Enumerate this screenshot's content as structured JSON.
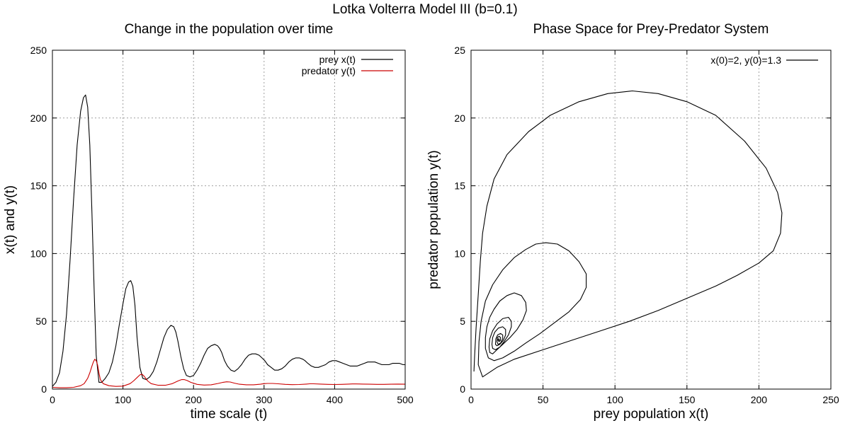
{
  "figure": {
    "title": "Lotka Volterra Model III (b=0.1)"
  },
  "chart_data": [
    {
      "type": "line",
      "title": "Change in the population over time",
      "xlabel": "time scale (t)",
      "ylabel": "x(t) and y(t)",
      "xlim": [
        0,
        500
      ],
      "ylim": [
        0,
        250
      ],
      "xticks": [
        0,
        100,
        200,
        300,
        400,
        500
      ],
      "yticks": [
        0,
        50,
        100,
        150,
        200,
        250
      ],
      "grid": true,
      "legend_position": "top-right",
      "series": [
        {
          "name": "prey x(t)",
          "color": "#000000",
          "x": [
            0,
            5,
            10,
            15,
            20,
            25,
            30,
            35,
            40,
            44,
            47,
            50,
            53,
            56,
            59,
            62,
            66,
            70,
            75,
            80,
            85,
            90,
            95,
            100,
            104,
            108,
            111,
            114,
            117,
            120,
            124,
            128,
            133,
            138,
            143,
            148,
            153,
            158,
            163,
            168,
            172,
            175,
            178,
            182,
            186,
            190,
            195,
            200,
            205,
            210,
            215,
            220,
            225,
            230,
            234,
            237,
            240,
            244,
            248,
            253,
            258,
            263,
            268,
            273,
            278,
            283,
            288,
            293,
            297,
            301,
            305,
            310,
            315,
            320,
            325,
            330,
            335,
            340,
            345,
            350,
            355,
            358,
            362,
            367,
            372,
            377,
            382,
            387,
            392,
            397,
            402,
            407,
            412,
            417,
            422,
            427,
            432,
            437,
            442,
            447,
            452,
            457,
            462,
            467,
            472,
            477,
            482,
            487,
            492,
            497,
            500
          ],
          "y": [
            2,
            5,
            12,
            28,
            55,
            95,
            140,
            180,
            205,
            215,
            217,
            208,
            180,
            130,
            75,
            25,
            5,
            5,
            8,
            12,
            20,
            32,
            48,
            63,
            74,
            79,
            80,
            76,
            62,
            38,
            16,
            8,
            7,
            9,
            13,
            20,
            29,
            38,
            44,
            47,
            46,
            42,
            35,
            24,
            15,
            10,
            9,
            10,
            14,
            19,
            25,
            30,
            32,
            33,
            32,
            30,
            27,
            21,
            17,
            14,
            13,
            15,
            18,
            22,
            25,
            26,
            26,
            25,
            23,
            21,
            18,
            16,
            14,
            14,
            15,
            17,
            20,
            22,
            23,
            23,
            22,
            21,
            19,
            17,
            16,
            16,
            17,
            18,
            20,
            21,
            21,
            20,
            19,
            18,
            17,
            17,
            17,
            18,
            19,
            20,
            20,
            20,
            19,
            18,
            18,
            18,
            19,
            19,
            19,
            18,
            18
          ]
        },
        {
          "name": "predator y(t)",
          "color": "#cc0000",
          "x": [
            0,
            10,
            20,
            30,
            40,
            45,
            50,
            53,
            56,
            58,
            60,
            62,
            64,
            66,
            68,
            72,
            80,
            90,
            100,
            110,
            115,
            120,
            124,
            127,
            130,
            135,
            140,
            150,
            160,
            170,
            178,
            183,
            187,
            191,
            196,
            205,
            215,
            225,
            235,
            242,
            247,
            252,
            258,
            265,
            275,
            285,
            295,
            300,
            305,
            312,
            320,
            330,
            340,
            350,
            360,
            365,
            370,
            380,
            390,
            400,
            410,
            420,
            425,
            430,
            440,
            450,
            460,
            470,
            480,
            490,
            500
          ],
          "y": [
            1.3,
            1.0,
            1.0,
            1.3,
            2.5,
            4,
            8,
            12,
            17,
            20,
            22,
            21,
            18,
            12,
            7,
            4,
            2.5,
            2,
            2.2,
            4,
            6,
            8.5,
            10.5,
            11,
            9.5,
            6,
            4,
            2.8,
            2.8,
            4,
            6,
            7,
            7,
            6.3,
            5,
            3.5,
            3,
            3.2,
            4.2,
            5,
            5.4,
            5.2,
            4.4,
            3.6,
            3.2,
            3.2,
            3.6,
            4,
            4.2,
            4.2,
            3.9,
            3.5,
            3.3,
            3.4,
            3.7,
            3.9,
            3.9,
            3.7,
            3.5,
            3.4,
            3.5,
            3.7,
            3.8,
            3.8,
            3.7,
            3.6,
            3.5,
            3.5,
            3.6,
            3.7,
            3.6
          ]
        }
      ]
    },
    {
      "type": "line",
      "title": "Phase Space for Prey-Predator System",
      "xlabel": "prey population x(t)",
      "ylabel": "predator population y(t)",
      "xlim": [
        0,
        250
      ],
      "ylim": [
        0,
        25
      ],
      "xticks": [
        0,
        50,
        100,
        150,
        200,
        250
      ],
      "yticks": [
        0,
        5,
        10,
        15,
        20,
        25
      ],
      "grid": true,
      "legend_position": "top-right",
      "series": [
        {
          "name": "x(0)=2, y(0)=1.3",
          "color": "#000000",
          "x": [
            2,
            2.5,
            3.5,
            5,
            6.5,
            8,
            11,
            16,
            25,
            40,
            55,
            75,
            95,
            112,
            130,
            150,
            170,
            190,
            205,
            213,
            216,
            215,
            210,
            200,
            185,
            170,
            150,
            130,
            110,
            90,
            70,
            50,
            30,
            18,
            8,
            5,
            5.5,
            7,
            10,
            15,
            22,
            30,
            38,
            45,
            52,
            60,
            68,
            75,
            80,
            80,
            76,
            68,
            58,
            48,
            38,
            30,
            22,
            16,
            12,
            10,
            10,
            11,
            13,
            16,
            20,
            25,
            30,
            35,
            38,
            38.5,
            36,
            32,
            27,
            22,
            18,
            15,
            13,
            12.5,
            13,
            15,
            18,
            22,
            26,
            28,
            28,
            26,
            23,
            20,
            17,
            15,
            14.5,
            15,
            16.5,
            19,
            22,
            24,
            24,
            22.5,
            20,
            18,
            17,
            17.2,
            18.5,
            20.5,
            22,
            22,
            20.5,
            18.8,
            18,
            18.3,
            19.5,
            20.5,
            20.5,
            19.5,
            18.7,
            18.8,
            19.5,
            19.8,
            19.3,
            19
          ],
          "y": [
            1.3,
            2.5,
            4.5,
            7,
            9.5,
            11.5,
            13.5,
            15.5,
            17.3,
            19,
            20.2,
            21.2,
            21.8,
            22,
            21.8,
            21.2,
            20.2,
            18.3,
            16.3,
            14.5,
            13,
            11.5,
            10.2,
            9.3,
            8.4,
            7.6,
            6.7,
            5.8,
            5.0,
            4.3,
            3.6,
            2.9,
            2.2,
            1.6,
            0.9,
            1.8,
            3.5,
            5,
            6.5,
            7.7,
            8.8,
            9.7,
            10.3,
            10.7,
            10.8,
            10.7,
            10.2,
            9.4,
            8.5,
            7.5,
            6.6,
            5.7,
            4.9,
            4.1,
            3.4,
            2.8,
            2.3,
            2.1,
            2.3,
            3.0,
            3.8,
            4.6,
            5.3,
            5.9,
            6.5,
            6.9,
            7.1,
            6.9,
            6.4,
            5.8,
            5.1,
            4.4,
            3.8,
            3.3,
            2.9,
            2.6,
            2.7,
            3.1,
            3.7,
            4.3,
            4.8,
            5.2,
            5.3,
            5.0,
            4.6,
            4.0,
            3.5,
            3.1,
            2.9,
            3.0,
            3.3,
            3.8,
            4.2,
            4.5,
            4.6,
            4.4,
            4.0,
            3.6,
            3.3,
            3.2,
            3.3,
            3.7,
            4.0,
            4.1,
            4.0,
            3.7,
            3.4,
            3.3,
            3.5,
            3.8,
            3.9,
            3.8,
            3.6,
            3.5,
            3.6,
            3.7,
            3.7,
            3.6,
            3.6,
            3.6
          ]
        }
      ]
    }
  ]
}
